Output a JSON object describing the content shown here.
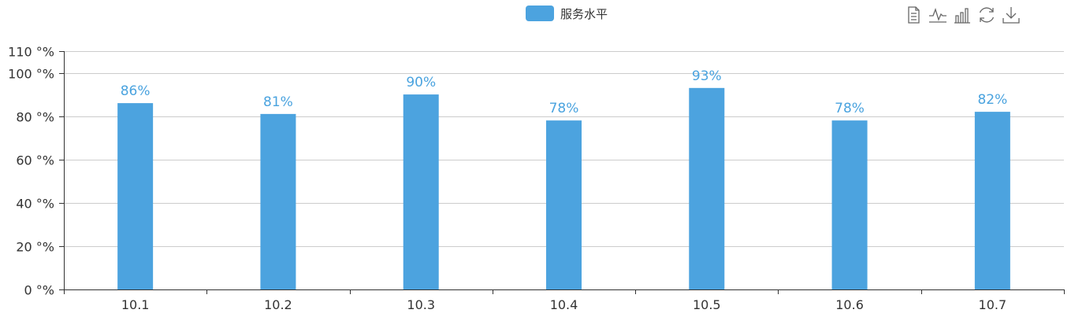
{
  "legend": {
    "label": "服务水平",
    "color": "#4ca3df"
  },
  "toolbox": {
    "items": [
      {
        "name": "data-view-icon"
      },
      {
        "name": "line-chart-icon"
      },
      {
        "name": "bar-chart-icon"
      },
      {
        "name": "restore-icon"
      },
      {
        "name": "save-image-icon"
      }
    ]
  },
  "chart_data": {
    "type": "bar",
    "categories": [
      "10.1",
      "10.2",
      "10.3",
      "10.4",
      "10.5",
      "10.6",
      "10.7"
    ],
    "series": [
      {
        "name": "服务水平",
        "values": [
          86,
          81,
          90,
          78,
          93,
          78,
          82
        ],
        "color": "#4ca3df"
      }
    ],
    "data_labels": [
      "86%",
      "81%",
      "90%",
      "78%",
      "93%",
      "78%",
      "82%"
    ],
    "ylim": [
      0,
      110
    ],
    "y_ticks": [
      0,
      20,
      40,
      60,
      80,
      100,
      110
    ],
    "y_tick_labels": [
      "0 °%",
      "20 °%",
      "40 °%",
      "60 °%",
      "80 °%",
      "100 °%",
      "110 °%"
    ],
    "grid": true,
    "legend_position": "top-center"
  }
}
